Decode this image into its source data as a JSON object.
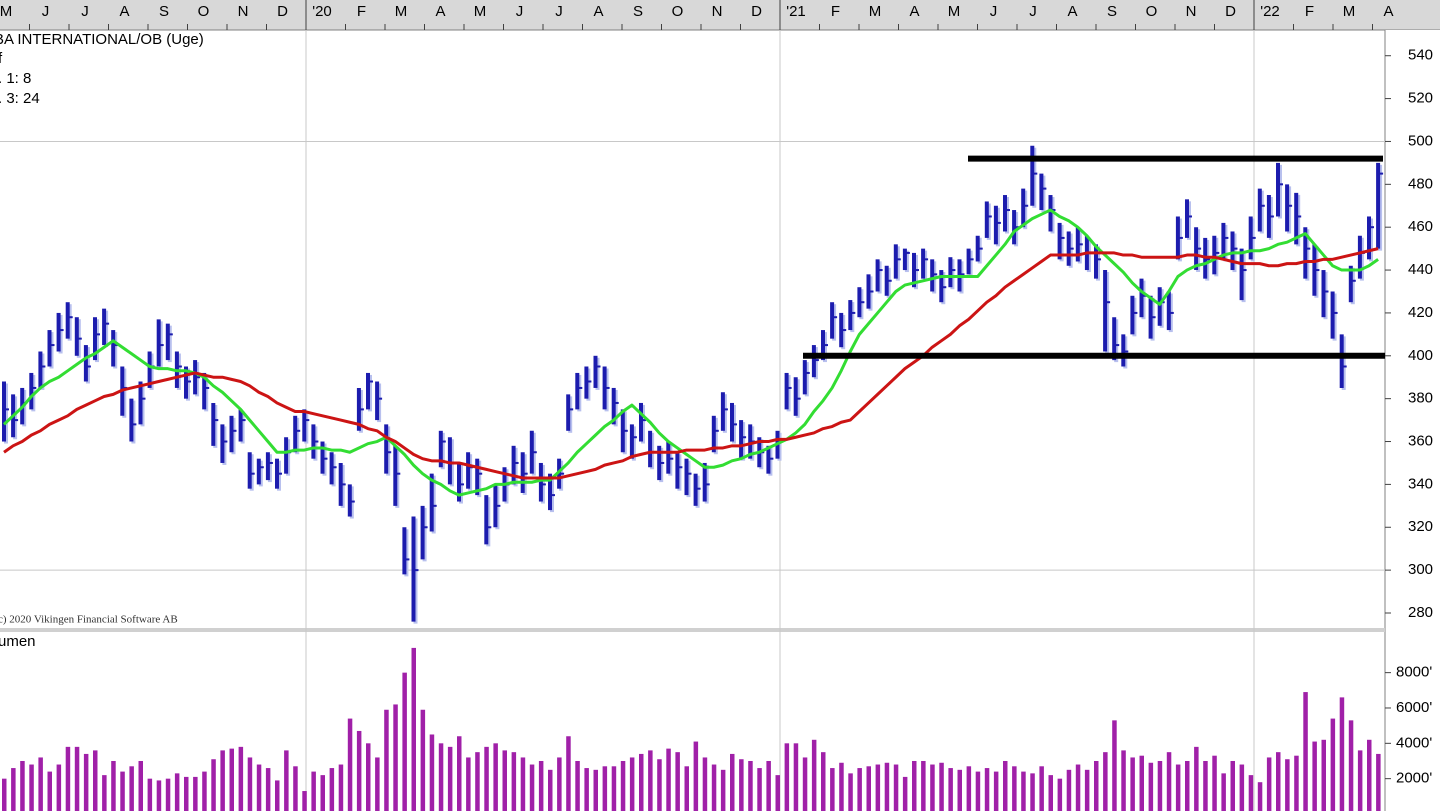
{
  "chart_data": [
    {
      "type": "ohlc",
      "title": "BA INTERNATIONAL/OB (Uge)",
      "subtitle": "f",
      "copyright": "c) 2020 Vikingen Financial Software AB",
      "month_labels": [
        "M",
        "J",
        "J",
        "A",
        "S",
        "O",
        "N",
        "D",
        "'20",
        "F",
        "M",
        "A",
        "M",
        "J",
        "J",
        "A",
        "S",
        "O",
        "N",
        "D",
        "'21",
        "F",
        "M",
        "A",
        "M",
        "J",
        "J",
        "A",
        "S",
        "O",
        "N",
        "D",
        "'22",
        "F",
        "M",
        "A"
      ],
      "ylim": [
        273,
        552
      ],
      "yticks": [
        540,
        520,
        500,
        480,
        460,
        440,
        420,
        400,
        380,
        360,
        340,
        320,
        300,
        280
      ],
      "ygrid": [
        500,
        300
      ],
      "bar_color": "#1c1cae",
      "hlines": [
        {
          "value": 492,
          "color": "#000000"
        },
        {
          "value": 400,
          "color": "#000000"
        }
      ],
      "high": [
        388,
        382,
        385,
        392,
        402,
        412,
        420,
        425,
        418,
        405,
        418,
        422,
        412,
        395,
        380,
        388,
        402,
        417,
        415,
        402,
        395,
        398,
        392,
        378,
        368,
        372,
        375,
        355,
        352,
        355,
        352,
        362,
        372,
        375,
        368,
        360,
        355,
        350,
        340,
        385,
        392,
        388,
        368,
        358,
        320,
        325,
        330,
        345,
        365,
        362,
        350,
        355,
        352,
        335,
        340,
        348,
        358,
        355,
        365,
        350,
        345,
        352,
        382,
        392,
        395,
        400,
        395,
        385,
        375,
        368,
        378,
        365,
        358,
        360,
        355,
        352,
        345,
        350,
        372,
        383,
        378,
        370,
        368,
        362,
        358,
        365,
        392,
        390,
        398,
        405,
        412,
        425,
        420,
        426,
        432,
        438,
        445,
        442,
        452,
        450,
        448,
        450,
        445,
        440,
        446,
        445,
        450,
        456,
        472,
        470,
        475,
        468,
        478,
        498,
        485,
        475,
        462,
        458,
        460,
        456,
        452,
        440,
        418,
        410,
        428,
        436,
        428,
        432,
        430,
        465,
        473,
        460,
        455,
        456,
        462,
        458,
        450,
        465,
        478,
        475,
        490,
        480,
        476,
        460,
        452,
        440,
        430,
        410,
        442,
        456,
        465,
        490
      ],
      "low": [
        360,
        362,
        368,
        375,
        385,
        395,
        402,
        408,
        400,
        388,
        398,
        405,
        395,
        372,
        360,
        368,
        385,
        395,
        398,
        385,
        380,
        382,
        375,
        358,
        350,
        355,
        360,
        338,
        340,
        342,
        338,
        345,
        355,
        360,
        352,
        345,
        340,
        330,
        325,
        365,
        375,
        370,
        345,
        330,
        298,
        276,
        305,
        318,
        348,
        340,
        332,
        338,
        335,
        312,
        320,
        332,
        340,
        336,
        345,
        332,
        328,
        338,
        365,
        375,
        380,
        385,
        375,
        368,
        355,
        352,
        360,
        348,
        342,
        345,
        338,
        335,
        330,
        332,
        355,
        365,
        360,
        352,
        352,
        348,
        345,
        352,
        375,
        372,
        382,
        390,
        398,
        408,
        404,
        412,
        418,
        422,
        430,
        428,
        436,
        440,
        432,
        436,
        430,
        425,
        432,
        430,
        438,
        444,
        455,
        452,
        458,
        452,
        460,
        470,
        468,
        458,
        445,
        442,
        444,
        440,
        436,
        402,
        398,
        395,
        410,
        418,
        408,
        414,
        412,
        445,
        455,
        440,
        436,
        438,
        445,
        440,
        426,
        445,
        458,
        455,
        465,
        458,
        452,
        436,
        428,
        418,
        408,
        385,
        425,
        436,
        445,
        450
      ],
      "close": [
        375,
        370,
        378,
        385,
        395,
        405,
        412,
        418,
        408,
        395,
        410,
        415,
        405,
        385,
        368,
        380,
        395,
        405,
        410,
        395,
        388,
        390,
        385,
        370,
        360,
        365,
        370,
        345,
        348,
        350,
        345,
        355,
        365,
        370,
        360,
        352,
        348,
        340,
        332,
        375,
        388,
        380,
        355,
        345,
        305,
        300,
        320,
        330,
        360,
        350,
        340,
        348,
        345,
        320,
        330,
        340,
        350,
        345,
        355,
        340,
        335,
        345,
        375,
        385,
        388,
        395,
        385,
        378,
        365,
        362,
        370,
        355,
        350,
        352,
        348,
        345,
        338,
        340,
        365,
        375,
        368,
        362,
        360,
        355,
        352,
        360,
        385,
        380,
        392,
        398,
        405,
        418,
        412,
        420,
        425,
        430,
        440,
        435,
        445,
        448,
        440,
        445,
        438,
        432,
        440,
        438,
        445,
        450,
        465,
        462,
        468,
        460,
        470,
        485,
        478,
        468,
        455,
        450,
        452,
        448,
        445,
        425,
        405,
        402,
        420,
        428,
        418,
        425,
        420,
        455,
        465,
        450,
        445,
        448,
        455,
        450,
        440,
        455,
        470,
        465,
        480,
        470,
        465,
        450,
        440,
        430,
        420,
        395,
        435,
        448,
        460,
        485
      ],
      "series": [
        {
          "name": ". 1: 8",
          "color": "#33dd33",
          "values": [
            368,
            372,
            376,
            381,
            385,
            388,
            390,
            393,
            396,
            399,
            401,
            404,
            407,
            404,
            401,
            398,
            395,
            394,
            394,
            393,
            393,
            392,
            390,
            386,
            383,
            379,
            375,
            370,
            365,
            360,
            355,
            355,
            356,
            356,
            357,
            357,
            356,
            356,
            355,
            357,
            359,
            360,
            362,
            358,
            354,
            349,
            345,
            342,
            340,
            337,
            335,
            336,
            337,
            338,
            340,
            340,
            341,
            341,
            341,
            342,
            342,
            346,
            350,
            355,
            359,
            363,
            367,
            370,
            374,
            377,
            373,
            369,
            364,
            360,
            357,
            354,
            351,
            348,
            348,
            349,
            351,
            352,
            354,
            355,
            357,
            359,
            361,
            364,
            368,
            374,
            379,
            385,
            393,
            402,
            410,
            415,
            420,
            425,
            430,
            433,
            434,
            435,
            436,
            437,
            437,
            437,
            437,
            437,
            442,
            447,
            452,
            458,
            461,
            464,
            466,
            468,
            465,
            463,
            460,
            456,
            451,
            447,
            443,
            439,
            434,
            430,
            427,
            424,
            430,
            437,
            440,
            442,
            443,
            445,
            447,
            448,
            448,
            449,
            449,
            450,
            452,
            453,
            455,
            457,
            452,
            447,
            442,
            440,
            440,
            440,
            442,
            445
          ]
        },
        {
          "name": ". 3: 24",
          "color": "#cc1414",
          "values": [
            355,
            358,
            360,
            363,
            365,
            368,
            370,
            372,
            375,
            377,
            379,
            381,
            382,
            384,
            385,
            386,
            387,
            388,
            389,
            390,
            391,
            392,
            391,
            390,
            390,
            389,
            388,
            386,
            383,
            381,
            378,
            376,
            374,
            374,
            373,
            372,
            371,
            370,
            369,
            368,
            366,
            365,
            362,
            360,
            357,
            354,
            352,
            351,
            351,
            350,
            350,
            349,
            348,
            347,
            346,
            345,
            344,
            343,
            343,
            343,
            343,
            343,
            344,
            345,
            346,
            347,
            349,
            350,
            351,
            353,
            354,
            355,
            355,
            355,
            355,
            356,
            356,
            356,
            357,
            357,
            358,
            358,
            359,
            360,
            360,
            361,
            361,
            362,
            363,
            364,
            366,
            367,
            369,
            370,
            374,
            378,
            382,
            386,
            390,
            394,
            397,
            400,
            404,
            407,
            410,
            414,
            417,
            421,
            425,
            428,
            432,
            435,
            438,
            441,
            444,
            447,
            447,
            447,
            447,
            448,
            448,
            448,
            448,
            447,
            447,
            446,
            446,
            446,
            446,
            446,
            447,
            447,
            446,
            446,
            445,
            444,
            443,
            443,
            443,
            442,
            442,
            443,
            443,
            444,
            444,
            445,
            445,
            446,
            447,
            448,
            449,
            450
          ]
        }
      ]
    },
    {
      "type": "bar",
      "title": "umen",
      "color": "#a020a8",
      "ylim": [
        170,
        10300
      ],
      "yticks": [
        {
          "value": 8000,
          "label": "8000'"
        },
        {
          "value": 6000,
          "label": "6000'"
        },
        {
          "value": 4000,
          "label": "4000'"
        },
        {
          "value": 2000,
          "label": "2000'"
        }
      ],
      "values": [
        2000,
        2600,
        3000,
        2800,
        3200,
        2400,
        2800,
        3800,
        3800,
        3400,
        3600,
        2200,
        3000,
        2400,
        2700,
        3000,
        2000,
        1900,
        2000,
        2300,
        2100,
        2100,
        2400,
        3100,
        3600,
        3700,
        3800,
        3200,
        2800,
        2600,
        1900,
        3600,
        2700,
        1300,
        2400,
        2200,
        2600,
        2800,
        5400,
        4700,
        4000,
        3200,
        5900,
        6200,
        8000,
        9400,
        5900,
        4500,
        4000,
        3800,
        4400,
        3200,
        3500,
        3800,
        4000,
        3600,
        3500,
        3200,
        2800,
        3000,
        2500,
        3200,
        4400,
        3000,
        2600,
        2500,
        2700,
        2700,
        3000,
        3200,
        3400,
        3600,
        3100,
        3700,
        3500,
        2700,
        4100,
        3200,
        2800,
        2500,
        3400,
        3100,
        3000,
        2600,
        3000,
        2200,
        4000,
        4000,
        3200,
        4200,
        3500,
        2600,
        2900,
        2300,
        2600,
        2700,
        2800,
        2900,
        2800,
        2100,
        3000,
        3000,
        2800,
        2900,
        2600,
        2500,
        2700,
        2400,
        2600,
        2400,
        3000,
        2700,
        2400,
        2300,
        2700,
        2200,
        2000,
        2500,
        2800,
        2500,
        3000,
        3500,
        5300,
        3600,
        3200,
        3300,
        2900,
        3000,
        3500,
        2800,
        3000,
        3800,
        3000,
        3300,
        2300,
        3000,
        2800,
        2200,
        1800,
        3200,
        3500,
        3100,
        3300,
        6900,
        4100,
        4200,
        5400,
        6600,
        5300,
        3600,
        4200,
        3400
      ]
    }
  ]
}
